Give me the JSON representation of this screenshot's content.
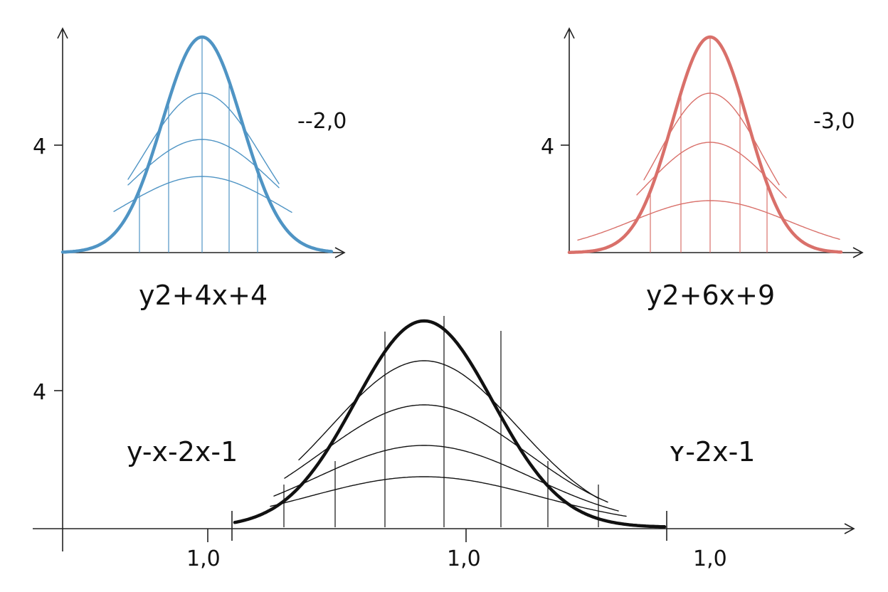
{
  "colors": {
    "blue": "#4f94c4",
    "red": "#d9706a",
    "black": "#111111",
    "axis": "#222222"
  },
  "panels": [
    {
      "id": "top-left",
      "color_key": "blue",
      "y_tick_label": "4",
      "equation": "y2+4x+4",
      "coord_label": "--2,0"
    },
    {
      "id": "top-right",
      "color_key": "red",
      "y_tick_label": "4",
      "equation": "y2+6x+9",
      "coord_label": "-3,0"
    },
    {
      "id": "bottom",
      "color_key": "black",
      "y_tick_label": "4",
      "equation_left": "y-x-2x-1",
      "equation_right": "ʏ-2x-1",
      "x_tick_labels": [
        "1,0",
        "1,0",
        "1,0"
      ]
    }
  ]
}
